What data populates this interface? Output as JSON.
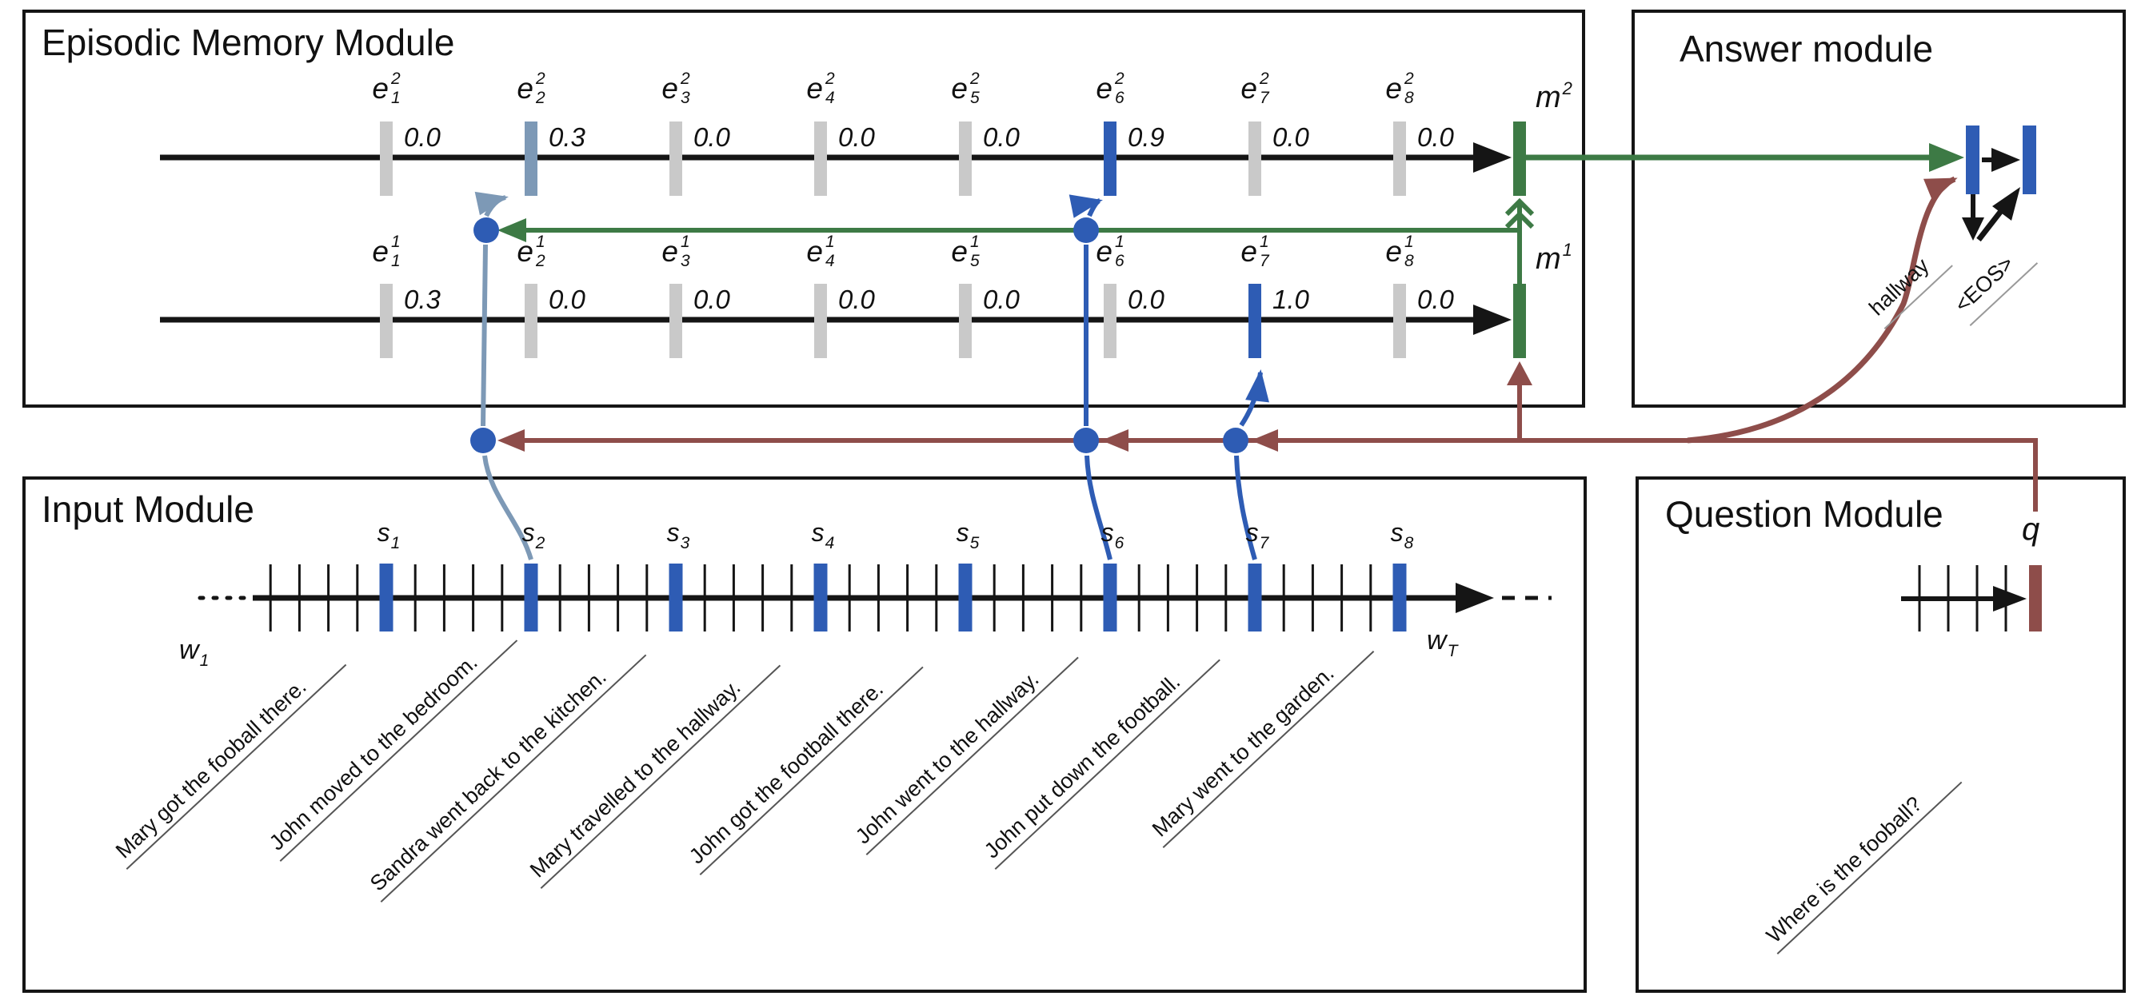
{
  "colors": {
    "blue": "#2e5cb4",
    "steel": "#7d99b6",
    "green": "#3d7a45",
    "maroon": "#8e4d4a",
    "gray": "#c9c9c9",
    "ink": "#151515"
  },
  "episodic": {
    "title": "Episodic Memory Module",
    "pass2": {
      "memory": {
        "base": "m",
        "sup": "2"
      },
      "episodes": [
        {
          "base": "e",
          "sup": "2",
          "sub": "1",
          "value": "0.0"
        },
        {
          "base": "e",
          "sup": "2",
          "sub": "2",
          "value": "0.3"
        },
        {
          "base": "e",
          "sup": "2",
          "sub": "3",
          "value": "0.0"
        },
        {
          "base": "e",
          "sup": "2",
          "sub": "4",
          "value": "0.0"
        },
        {
          "base": "e",
          "sup": "2",
          "sub": "5",
          "value": "0.0"
        },
        {
          "base": "e",
          "sup": "2",
          "sub": "6",
          "value": "0.9"
        },
        {
          "base": "e",
          "sup": "2",
          "sub": "7",
          "value": "0.0"
        },
        {
          "base": "e",
          "sup": "2",
          "sub": "8",
          "value": "0.0"
        }
      ]
    },
    "pass1": {
      "memory": {
        "base": "m",
        "sup": "1"
      },
      "episodes": [
        {
          "base": "e",
          "sup": "1",
          "sub": "1",
          "value": "0.3"
        },
        {
          "base": "e",
          "sup": "1",
          "sub": "2",
          "value": "0.0"
        },
        {
          "base": "e",
          "sup": "1",
          "sub": "3",
          "value": "0.0"
        },
        {
          "base": "e",
          "sup": "1",
          "sub": "4",
          "value": "0.0"
        },
        {
          "base": "e",
          "sup": "1",
          "sub": "5",
          "value": "0.0"
        },
        {
          "base": "e",
          "sup": "1",
          "sub": "6",
          "value": "0.0"
        },
        {
          "base": "e",
          "sup": "1",
          "sub": "7",
          "value": "1.0"
        },
        {
          "base": "e",
          "sup": "1",
          "sub": "8",
          "value": "0.0"
        }
      ]
    }
  },
  "answer": {
    "title": "Answer module",
    "outputs": [
      "hallway",
      "<EOS>"
    ]
  },
  "input": {
    "title": "Input Module",
    "start_label": {
      "base": "w",
      "sub": "1"
    },
    "end_label": {
      "base": "w",
      "sub": "T"
    },
    "sentences": [
      {
        "label": {
          "base": "s",
          "sub": "1"
        },
        "text": "Mary got the fooball there."
      },
      {
        "label": {
          "base": "s",
          "sub": "2"
        },
        "text": "John moved to the bedroom."
      },
      {
        "label": {
          "base": "s",
          "sub": "3"
        },
        "text": "Sandra went back to the kitchen."
      },
      {
        "label": {
          "base": "s",
          "sub": "4"
        },
        "text": "Mary travelled to the hallway."
      },
      {
        "label": {
          "base": "s",
          "sub": "5"
        },
        "text": "John got the football there."
      },
      {
        "label": {
          "base": "s",
          "sub": "6"
        },
        "text": "John went to the hallway."
      },
      {
        "label": {
          "base": "s",
          "sub": "7"
        },
        "text": "John put down the football."
      },
      {
        "label": {
          "base": "s",
          "sub": "8"
        },
        "text": "Mary went to the garden."
      }
    ]
  },
  "question": {
    "title": "Question Module",
    "vector_label": "q",
    "text": "Where is the fooball?"
  }
}
